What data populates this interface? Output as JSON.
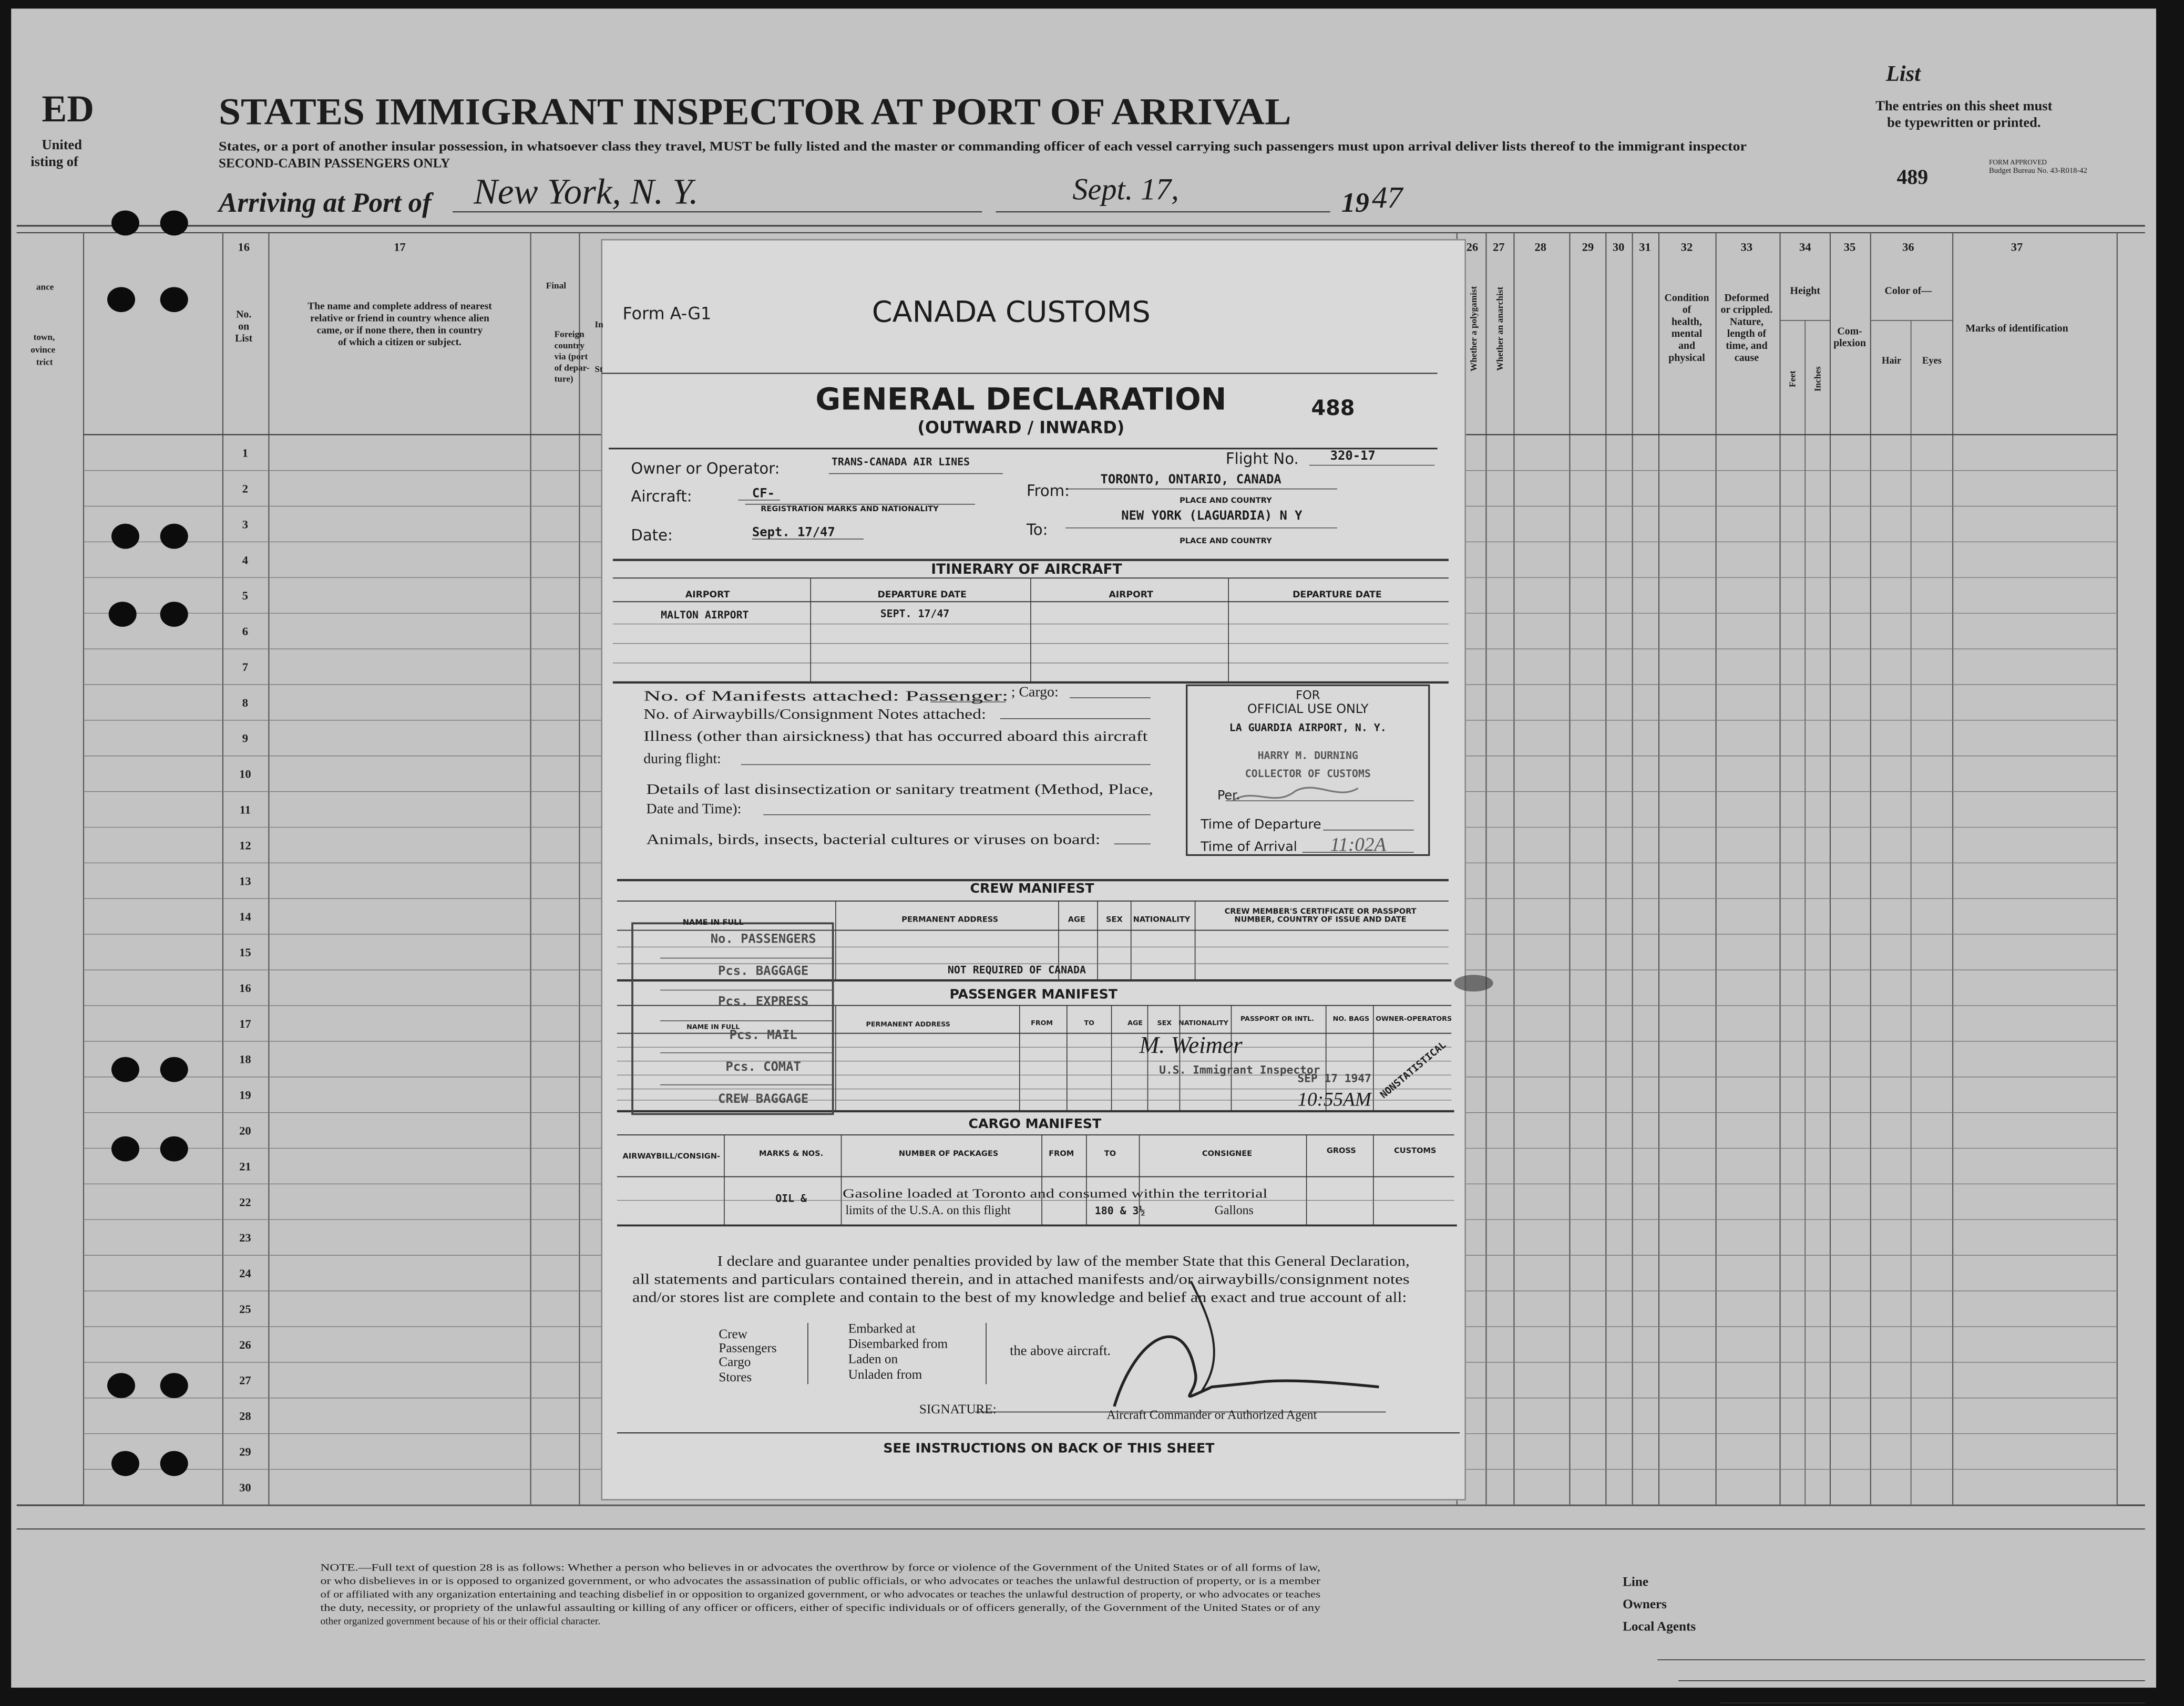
{
  "header": {
    "edge_fragments": [
      "ED",
      "United",
      "isting of"
    ],
    "left_fragments": [
      "ance",
      "town,",
      "ovince",
      "trict",
      "Final",
      "Foreign",
      "country",
      "via (port",
      "of depar-",
      "ture)",
      "In",
      "St"
    ],
    "title": "STATES IMMIGRANT INSPECTOR AT PORT OF ARRIVAL",
    "subtitle": "States, or a port of another insular possession, in whatsoever class they travel, MUST be fully listed and the master or commanding officer of each vessel carrying such passengers must upon arrival deliver lists thereof to the immigrant inspector",
    "passenger_class": "SECOND-CABIN PASSENGERS ONLY",
    "list_label": "List",
    "instructions": [
      "The entries on this sheet must",
      "be typewritten or printed."
    ],
    "form_approved": [
      "FORM APPROVED",
      "Budget Bureau No. 43-R018-42"
    ],
    "sheet_number": "489",
    "arriving_label": "Arriving at Port of",
    "port": "New York, N. Y.",
    "date": "Sept. 17,",
    "year_printed": "19",
    "year_written": "47",
    "columns": [
      {
        "number": "16",
        "header": [
          "No.",
          "on",
          "List"
        ]
      },
      {
        "number": "17",
        "header": [
          "The name and complete address of nearest",
          "relative or friend in country whence alien",
          "came, or if none there, then in country",
          "of which a citizen or subject."
        ]
      },
      {
        "number": "26",
        "header": [
          "Whether a polygamist"
        ]
      },
      {
        "number": "27",
        "header": [
          "Whether an anarchist"
        ]
      },
      {
        "number": "28"
      },
      {
        "number": "29"
      },
      {
        "number": "30"
      },
      {
        "number": "31"
      },
      {
        "number": "32",
        "header": [
          "Condition",
          "of",
          "health,",
          "mental",
          "and",
          "physical"
        ]
      },
      {
        "number": "33",
        "header": [
          "Deformed",
          "or crippled.",
          "Nature,",
          "length of",
          "time, and",
          "cause"
        ]
      },
      {
        "number": "34",
        "header": [
          "Height"
        ],
        "subheaders": [
          "Feet",
          "Inches"
        ]
      },
      {
        "number": "35",
        "header": [
          "Com-",
          "plexion"
        ]
      },
      {
        "number": "36",
        "header": [
          "Color of—"
        ],
        "subheaders": [
          "Hair",
          "Eyes"
        ]
      },
      {
        "number": "37",
        "header": [
          "Marks of identification"
        ]
      }
    ],
    "row_numbers": [
      "1",
      "2",
      "3",
      "4",
      "5",
      "6",
      "7",
      "8",
      "9",
      "10",
      "11",
      "12",
      "13",
      "14",
      "15",
      "16",
      "17",
      "18",
      "19",
      "20",
      "21",
      "22",
      "23",
      "24",
      "25",
      "26",
      "27",
      "28",
      "29",
      "30"
    ]
  },
  "declaration": {
    "form_number": "Form A-G1",
    "agency": "CANADA CUSTOMS",
    "title": "GENERAL DECLARATION",
    "direction": "(OUTWARD / INWARD)",
    "number": "488",
    "owner_label": "Owner or Operator:",
    "owner": "TRANS-CANADA AIR LINES",
    "flight_label": "Flight No.",
    "flight": "320-17",
    "aircraft_label": "Aircraft:",
    "aircraft": "CF-",
    "registration_caption": "REGISTRATION MARKS AND NATIONALITY",
    "from_label": "From:",
    "from": "TORONTO, ONTARIO, CANADA",
    "from_caption": "PLACE AND COUNTRY",
    "to_label": "To:",
    "to": "NEW YORK (LAGUARDIA) N Y",
    "to_caption": "PLACE AND COUNTRY",
    "date_label": "Date:",
    "date": "Sept. 17/47",
    "itinerary": {
      "title": "ITINERARY OF AIRCRAFT",
      "headers": [
        "AIRPORT",
        "DEPARTURE DATE",
        "AIRPORT",
        "DEPARTURE DATE"
      ],
      "rows": [
        [
          "MALTON AIRPORT",
          "SEPT. 17/47"
        ]
      ]
    },
    "questions": [
      "No. of Manifests attached: Passenger:",
      "; Cargo:",
      "No. of Airwaybills/Consignment Notes attached:",
      "Illness (other than airsickness) that has occurred aboard this aircraft",
      "during flight:",
      "Details of last disinsectization or sanitary treatment (Method, Place,",
      "Date and Time):",
      "Animals, birds, insects, bacterial cultures or viruses on board:"
    ],
    "official_box": {
      "lines": [
        "FOR",
        "OFFICIAL USE ONLY",
        "LA GUARDIA AIRPORT, N. Y.",
        "HARRY M. DURNING",
        "COLLECTOR OF CUSTOMS"
      ],
      "per_label": "Per.",
      "departure_label": "Time of Departure",
      "arrival_label": "Time of Arrival",
      "arrival": "11:02A"
    },
    "crew_manifest": {
      "title": "CREW MANIFEST",
      "headers": [
        "NAME IN FULL",
        "PERMANENT ADDRESS",
        "AGE",
        "SEX",
        "NATIONALITY",
        "CREW MEMBER'S CERTIFICATE OR PASSPORT",
        "NUMBER, COUNTRY OF ISSUE AND DATE"
      ],
      "note": "NOT REQUIRED OF CANADA"
    },
    "stamp_box": [
      "No. PASSENGERS",
      "Pcs. BAGGAGE",
      "Pcs. EXPRESS",
      "Pcs. MAIL",
      "Pcs. COMAT",
      "CREW BAGGAGE"
    ],
    "passenger_manifest": {
      "title": "PASSENGER MANIFEST",
      "headers": [
        "NAME IN FULL",
        "PERMANENT ADDRESS",
        "FROM",
        "TO",
        "AGE",
        "SEX",
        "NATIONALITY",
        "PASSPORT OR INTL.",
        "NO. BAGS",
        "OWNER-OPERATORS"
      ]
    },
    "inspector_stamp": {
      "signature": "M. Weimer",
      "role": "U.S. Immigrant Inspector",
      "date": "SEP 17 1947",
      "status": "NONSTATISTICAL",
      "time": "10:55AM"
    },
    "cargo_manifest": {
      "title": "CARGO MANIFEST",
      "headers": [
        "AIRWAYBILL/CONSIGN-",
        "MARKS & NOS.",
        "NUMBER OF PACKAGES",
        "FROM",
        "TO",
        "CONSIGNEE",
        "GROSS",
        "CUSTOMS"
      ],
      "marks": "OIL &",
      "description": [
        "Gasoline loaded at Toronto and consumed within the territorial",
        "limits of the U.S.A. on this flight"
      ],
      "quantity": "180 & 3½",
      "unit": "Gallons"
    },
    "declaration_text": [
      "I declare and guarantee under penalties provided by law of the member State that this General Declaration,",
      "all statements and particulars contained therein, and in attached manifests and/or airwaybills/consignment notes",
      "and/or stores list are complete and contain to the best of my knowledge and belief an exact and true account of all:"
    ],
    "parties": [
      "Crew",
      "Passengers",
      "Cargo",
      "Stores"
    ],
    "actions": [
      "Embarked at",
      "Disembarked from",
      "Laden on",
      "Unladen from"
    ],
    "aircraft_text": "the above aircraft.",
    "signature_label": "SIGNATURE:",
    "signer_caption": "Aircraft Commander or Authorized Agent",
    "instructions": "SEE INSTRUCTIONS ON BACK OF THIS SHEET"
  },
  "footer": {
    "note": [
      "NOTE.—Full text of question 28 is as follows: Whether a person who believes in or advocates the overthrow by force or violence of the Government of the United States or of all forms of law,",
      "or who disbelieves in or is opposed to organized government, or who advocates the assassination of public officials, or who advocates or teaches the unlawful destruction of property, or is a member",
      "of or affiliated with any organization entertaining and teaching disbelief in or opposition to organized government, or who advocates or teaches the unlawful destruction of property, or who advocates or teaches",
      "the duty, necessity, or propriety of the unlawful assaulting or killing of any officer or officers, either of specific individuals or of officers generally, of the Government of the United States or of any",
      "other organized government because of his or their official character."
    ],
    "fields": [
      "Line",
      "Owners",
      "Local Agents"
    ]
  }
}
